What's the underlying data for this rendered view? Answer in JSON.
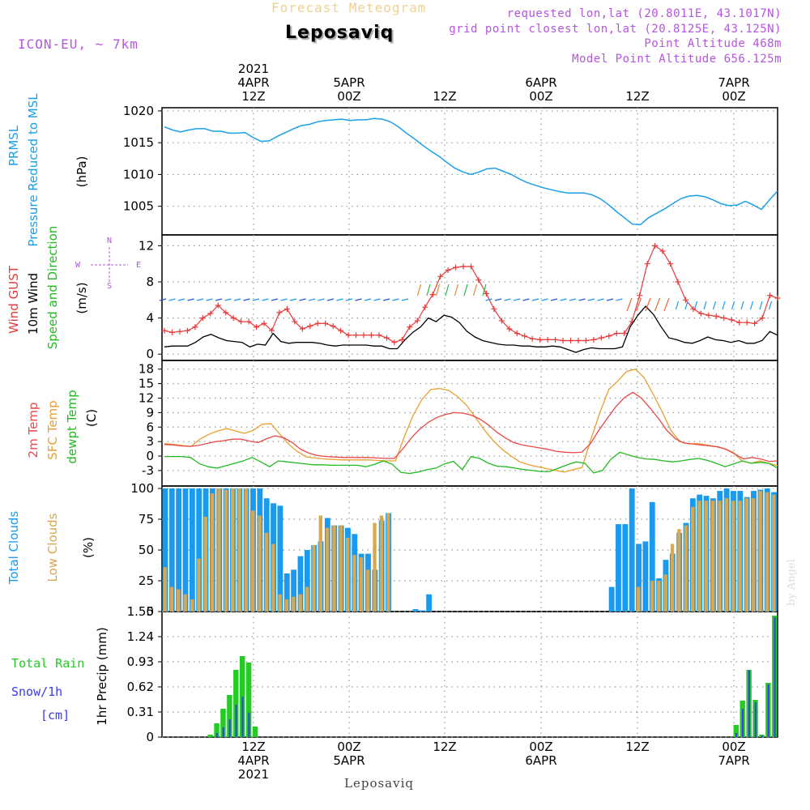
{
  "header": {
    "top_title": "Forecast Meteogram",
    "location": "Leposaviq",
    "model": "ICON-EU, ~ 7km",
    "requested": "requested lon,lat (20.8011E, 43.1017N)",
    "grid_point": "grid point closest lon,lat (20.8125E, 43.125N)",
    "point_alt": "Point Altitude 468m",
    "model_alt": "Model Point Altitude 656.125m"
  },
  "top_axis": {
    "labels": [
      {
        "l1": "2021",
        "l2": "4APR",
        "l3": "12Z"
      },
      {
        "l1": "",
        "l2": "5APR",
        "l3": "00Z"
      },
      {
        "l1": "",
        "l2": "",
        "l3": "12Z"
      },
      {
        "l1": "",
        "l2": "6APR",
        "l3": "00Z"
      },
      {
        "l1": "",
        "l2": "",
        "l3": "12Z"
      },
      {
        "l1": "",
        "l2": "7APR",
        "l3": "00Z"
      }
    ]
  },
  "bottom_axis": {
    "labels": [
      {
        "l1": "12Z",
        "l2": "4APR",
        "l3": "2021"
      },
      {
        "l1": "00Z",
        "l2": "5APR",
        "l3": ""
      },
      {
        "l1": "12Z",
        "l2": "",
        "l3": ""
      },
      {
        "l1": "00Z",
        "l2": "6APR",
        "l3": ""
      },
      {
        "l1": "12Z",
        "l2": "",
        "l3": ""
      },
      {
        "l1": "00Z",
        "l2": "7APR",
        "l3": ""
      }
    ]
  },
  "footer": {
    "station": "Leposaviq",
    "credit": "by Angel"
  },
  "colors": {
    "pressure": "#1aa0e8",
    "gust": "#e83a3a",
    "wind": "#000000",
    "temp2m": "#e84848",
    "sfc": "#e8a030",
    "dewpt": "#22bb22",
    "total_clouds": "#1a9aee",
    "low_clouds": "#d8a850",
    "rain": "#22cc22",
    "snow": "#3a3aee",
    "purple": "#b455e0"
  },
  "panel_labels": {
    "pressure": {
      "l1": "PRMSL",
      "l2": "Pressure Reduced to MSL",
      "unit": "(hPa)"
    },
    "wind": {
      "gust": "Wind GUST",
      "wind": "10m Wind",
      "dir": "Speed and Direction",
      "unit": "(m/s)",
      "compass_n": "N",
      "compass_s": "S",
      "compass_w": "W",
      "compass_e": "E"
    },
    "temp": {
      "t2m": "2m Temp",
      "sfc": "SFC Temp",
      "dew": "dewpt Temp",
      "unit": "(C)"
    },
    "clouds": {
      "total": "Total Clouds",
      "low": "Low Clouds",
      "unit": "(%)"
    },
    "precip": {
      "rain": "Total  Rain",
      "snow": "Snow/1h",
      "cm": "[cm]",
      "axis": "1hr Precip (mm)"
    }
  },
  "chart_data": [
    {
      "type": "line",
      "name": "pressure",
      "ylabel": "(hPa)",
      "yticks": [
        1005,
        1010,
        1015,
        1020
      ],
      "ylim": [
        1000.5,
        1020.5
      ],
      "series": [
        {
          "name": "PRMSL",
          "values": [
            1017.5,
            1017.0,
            1016.7,
            1017.0,
            1017.2,
            1017.2,
            1016.8,
            1016.8,
            1016.5,
            1016.5,
            1016.6,
            1015.8,
            1015.2,
            1015.3,
            1016.0,
            1016.6,
            1017.2,
            1017.7,
            1017.9,
            1018.3,
            1018.5,
            1018.6,
            1018.7,
            1018.5,
            1018.6,
            1018.6,
            1018.8,
            1018.7,
            1018.3,
            1017.5,
            1016.5,
            1015.6,
            1014.6,
            1013.7,
            1012.9,
            1011.9,
            1011.0,
            1010.4,
            1010.0,
            1010.4,
            1010.9,
            1011.0,
            1010.5,
            1010.0,
            1009.3,
            1008.7,
            1008.3,
            1007.9,
            1007.6,
            1007.3,
            1007.1,
            1007.1,
            1007.1,
            1006.8,
            1006.2,
            1005.3,
            1004.2,
            1003.2,
            1002.2,
            1002.1,
            1003.2,
            1003.9,
            1004.6,
            1005.4,
            1006.2,
            1006.6,
            1006.7,
            1006.5,
            1006.0,
            1005.4,
            1005.1,
            1005.2,
            1005.8,
            1005.2,
            1004.5,
            1006.0,
            1007.4
          ]
        }
      ]
    },
    {
      "type": "line",
      "name": "wind",
      "ylabel": "(m/s)",
      "yticks": [
        0,
        4,
        8,
        12
      ],
      "ylim": [
        -0.7,
        13.2
      ],
      "series": [
        {
          "name": "Wind GUST",
          "values": [
            2.6,
            2.4,
            2.5,
            2.6,
            3.0,
            4.0,
            4.5,
            5.4,
            4.6,
            4.0,
            3.6,
            3.6,
            3.0,
            3.4,
            2.6,
            4.6,
            5.0,
            3.6,
            2.8,
            3.1,
            3.4,
            3.4,
            3.1,
            2.6,
            2.1,
            2.1,
            2.1,
            2.1,
            2.1,
            1.8,
            1.3,
            1.6,
            3.0,
            3.7,
            5.2,
            6.6,
            8.6,
            9.3,
            9.6,
            9.7,
            9.7,
            8.2,
            6.7,
            5.0,
            3.7,
            2.8,
            2.3,
            2.0,
            1.7,
            1.6,
            1.6,
            1.6,
            1.5,
            1.5,
            1.5,
            1.5,
            1.6,
            1.8,
            2.0,
            2.3,
            2.3,
            3.6,
            6.5,
            10.0,
            12.0,
            11.4,
            10.0,
            8.0,
            6.0,
            5.0,
            4.5,
            4.3,
            4.2,
            4.0,
            3.8,
            3.5,
            3.5,
            3.4,
            4.0,
            6.5,
            6.2
          ]
        },
        {
          "name": "10m Wind",
          "values": [
            0.8,
            0.9,
            0.9,
            0.9,
            1.3,
            1.9,
            2.2,
            1.8,
            1.5,
            1.4,
            1.3,
            0.8,
            1.1,
            1.0,
            2.3,
            1.4,
            1.2,
            1.3,
            1.3,
            1.3,
            1.2,
            1.0,
            0.9,
            1.0,
            1.0,
            1.0,
            1.0,
            0.9,
            0.9,
            0.6,
            0.6,
            1.6,
            2.4,
            3.0,
            4.0,
            3.6,
            4.3,
            4.1,
            3.5,
            2.5,
            1.9,
            1.5,
            1.3,
            1.1,
            1.0,
            1.0,
            0.9,
            0.9,
            0.8,
            0.8,
            0.9,
            0.8,
            0.5,
            0.2,
            0.5,
            0.7,
            0.6,
            0.6,
            0.6,
            0.8,
            3.0,
            4.3,
            5.3,
            4.4,
            3.0,
            1.8,
            1.6,
            1.3,
            1.2,
            1.5,
            1.9,
            1.6,
            1.5,
            1.3,
            1.5,
            1.2,
            1.2,
            1.5,
            2.5,
            2.1
          ]
        }
      ]
    },
    {
      "type": "line",
      "name": "temperature",
      "ylabel": "(C)",
      "yticks": [
        -3,
        0,
        3,
        6,
        9,
        12,
        15,
        18
      ],
      "ylim": [
        -6.2,
        19.8
      ],
      "series": [
        {
          "name": "2m Temp",
          "values": [
            2.4,
            2.3,
            2.1,
            2.0,
            2.2,
            2.6,
            3.0,
            3.2,
            3.5,
            3.5,
            3.1,
            2.8,
            3.6,
            4.2,
            3.8,
            2.8,
            1.4,
            0.6,
            0.1,
            -0.1,
            -0.2,
            -0.3,
            -0.3,
            -0.3,
            -0.3,
            -0.4,
            -0.5,
            -0.5,
            1.5,
            3.8,
            5.6,
            7.0,
            8.0,
            8.6,
            9.0,
            8.9,
            8.5,
            7.7,
            6.5,
            5.0,
            3.8,
            2.8,
            2.3,
            2.0,
            1.7,
            1.4,
            1.0,
            0.8,
            0.7,
            0.8,
            2.5,
            5.3,
            7.8,
            10.2,
            12.1,
            13.2,
            12.0,
            10.0,
            7.8,
            5.3,
            3.6,
            2.7,
            2.5,
            2.3,
            2.1,
            1.9,
            1.4,
            0.4,
            -0.6,
            -0.3,
            -0.6,
            -1.1,
            -1.0
          ]
        },
        {
          "name": "SFC Temp",
          "values": [
            2.6,
            2.4,
            2.2,
            2.0,
            3.5,
            4.5,
            5.2,
            5.7,
            5.2,
            4.7,
            5.3,
            6.6,
            6.7,
            4.5,
            2.4,
            0.9,
            -0.2,
            -0.4,
            -0.6,
            -0.7,
            -0.8,
            -0.8,
            -0.8,
            -0.8,
            -0.9,
            -1.0,
            -1.0,
            4.0,
            8.5,
            11.8,
            13.8,
            14.0,
            13.6,
            12.3,
            10.5,
            8.0,
            5.4,
            3.2,
            1.4,
            0.0,
            -1.2,
            -1.8,
            -2.2,
            -2.6,
            -3.0,
            -3.3,
            -2.8,
            -2.4,
            3.5,
            9.0,
            13.8,
            15.5,
            17.5,
            18.0,
            16.2,
            12.8,
            9.2,
            5.3,
            3.0,
            2.5,
            2.6,
            2.3,
            2.0,
            1.5,
            0.8,
            -1.0,
            -1.5,
            -1.0,
            -1.5,
            -2.0
          ]
        },
        {
          "name": "dewpt Temp",
          "values": [
            -0.1,
            -0.1,
            -0.1,
            -0.3,
            -1.6,
            -2.2,
            -2.5,
            -2.0,
            -1.5,
            -1.0,
            -0.3,
            -1.2,
            -2.2,
            -1.0,
            -1.2,
            -1.4,
            -1.6,
            -1.8,
            -1.8,
            -1.9,
            -1.9,
            -1.9,
            -1.9,
            -2.2,
            -1.7,
            -1.0,
            -1.7,
            -3.4,
            -3.6,
            -3.3,
            -2.8,
            -2.5,
            -1.6,
            -1.1,
            -2.8,
            -0.1,
            -0.5,
            -1.5,
            -2.1,
            -2.2,
            -2.5,
            -2.8,
            -3.0,
            -3.2,
            -3.2,
            -2.5,
            -1.8,
            -1.2,
            -1.5,
            -3.5,
            -3.0,
            -0.6,
            0.8,
            0.2,
            -0.3,
            -0.6,
            -0.7,
            -1.0,
            -1.2,
            -1.0,
            -0.7,
            -0.5,
            -0.9,
            -1.5,
            -2.2,
            -1.6,
            -1.0,
            -1.5,
            -1.3,
            -1.5,
            -2.5
          ]
        }
      ]
    },
    {
      "type": "bar",
      "name": "clouds",
      "ylabel": "(%)",
      "yticks": [
        0,
        25,
        50,
        75,
        100
      ],
      "ylim": [
        0,
        102
      ],
      "series": [
        {
          "name": "Total Clouds",
          "values": [
            100,
            100,
            100,
            100,
            100,
            100,
            100,
            100,
            100,
            100,
            100,
            100,
            100,
            100,
            100,
            92,
            88,
            86,
            31,
            34,
            45,
            50,
            54,
            57,
            76,
            70,
            70,
            68,
            63,
            47,
            47,
            34,
            74,
            80,
            0,
            0,
            0,
            2,
            1,
            14,
            0,
            0,
            0,
            0,
            0,
            0,
            0,
            0,
            0,
            0,
            0,
            0,
            0,
            0,
            0,
            0,
            0,
            0,
            0,
            0,
            0,
            0,
            0,
            0,
            0,
            0,
            20,
            71,
            71,
            100,
            55,
            57,
            89,
            27,
            42,
            47,
            64,
            72,
            92,
            95,
            94,
            92,
            98,
            100,
            98,
            98,
            93,
            98,
            99,
            100,
            97
          ]
        },
        {
          "name": "Low Clouds",
          "values": [
            36,
            20,
            18,
            14,
            10,
            43,
            77,
            96,
            100,
            99,
            100,
            100,
            100,
            82,
            78,
            64,
            55,
            14,
            10,
            12,
            14,
            20,
            54,
            78,
            68,
            70,
            70,
            60,
            46,
            44,
            34,
            72,
            78,
            80,
            0,
            0,
            0,
            0,
            0,
            0,
            0,
            0,
            0,
            0,
            0,
            0,
            0,
            0,
            0,
            0,
            0,
            0,
            0,
            0,
            0,
            0,
            0,
            0,
            0,
            0,
            0,
            0,
            0,
            0,
            0,
            0,
            0,
            0,
            0,
            0,
            20,
            0,
            25,
            25,
            30,
            55,
            67,
            70,
            85,
            90,
            90,
            90,
            90,
            92,
            90,
            90,
            92,
            92,
            98,
            97,
            95
          ]
        }
      ]
    },
    {
      "type": "bar",
      "name": "precipitation",
      "ylabel": "1hr Precip (mm)",
      "yticks": [
        0,
        0.31,
        0.62,
        0.93,
        1.24,
        1.55
      ],
      "ylim": [
        0,
        1.55
      ],
      "series": [
        {
          "name": "Total Rain",
          "values": [
            0,
            0,
            0,
            0,
            0,
            0,
            0,
            0.03,
            0.17,
            0.35,
            0.52,
            0.83,
            1.0,
            0.92,
            0.13,
            0,
            0,
            0,
            0,
            0,
            0,
            0,
            0,
            0,
            0,
            0,
            0,
            0,
            0,
            0,
            0,
            0,
            0,
            0,
            0,
            0,
            0,
            0,
            0,
            0,
            0,
            0,
            0,
            0,
            0,
            0,
            0,
            0,
            0,
            0,
            0,
            0,
            0,
            0,
            0,
            0,
            0,
            0,
            0,
            0,
            0,
            0,
            0,
            0,
            0,
            0,
            0,
            0,
            0,
            0,
            0,
            0,
            0,
            0,
            0,
            0,
            0,
            0,
            0,
            0,
            0,
            0,
            0,
            0,
            0,
            0,
            0,
            0,
            0,
            0.15,
            0.45,
            0.83,
            0.46,
            0.03,
            0.67,
            1.5
          ]
        },
        {
          "name": "Snow/1h",
          "values": [
            0,
            0,
            0,
            0,
            0,
            0,
            0,
            0,
            0.05,
            0.12,
            0.22,
            0.4,
            0.5,
            0.3,
            0,
            0,
            0,
            0,
            0,
            0,
            0,
            0,
            0,
            0,
            0,
            0,
            0,
            0,
            0,
            0,
            0,
            0,
            0,
            0,
            0,
            0,
            0,
            0,
            0,
            0,
            0,
            0,
            0,
            0,
            0,
            0,
            0,
            0,
            0,
            0,
            0,
            0,
            0,
            0,
            0,
            0,
            0,
            0,
            0,
            0,
            0,
            0,
            0,
            0,
            0,
            0,
            0,
            0,
            0,
            0,
            0,
            0,
            0,
            0,
            0,
            0,
            0,
            0,
            0,
            0,
            0,
            0,
            0,
            0,
            0,
            0,
            0,
            0,
            0,
            0.05,
            0.35,
            0.83,
            0.43,
            0.02,
            0.65,
            1.48
          ]
        }
      ]
    }
  ]
}
